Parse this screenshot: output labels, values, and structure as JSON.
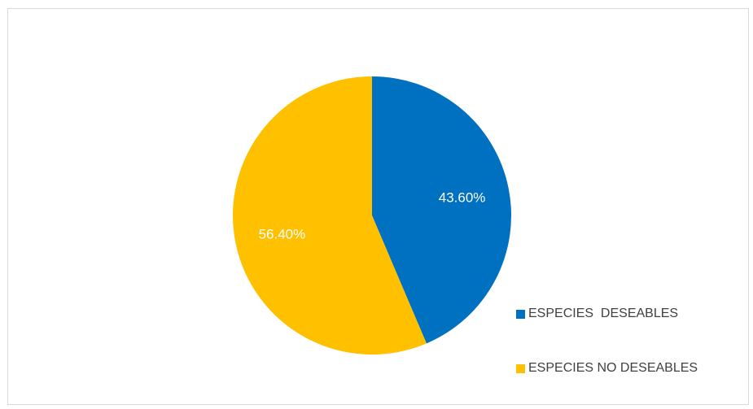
{
  "chart_data": {
    "type": "pie",
    "title": "",
    "categories": [
      "ESPECIES  DESEABLES",
      "ESPECIES NO DESEABLES"
    ],
    "values": [
      43.6,
      56.4
    ],
    "data_labels": [
      "43.60%",
      "56.40%"
    ],
    "colors": [
      "#0070c0",
      "#ffc000"
    ],
    "legend_position": "right-bottom"
  }
}
